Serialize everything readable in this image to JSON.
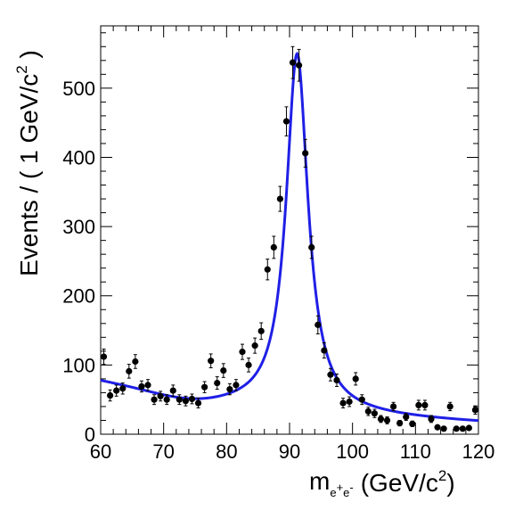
{
  "chart_data": {
    "type": "scatter",
    "title": "",
    "xlabel": {
      "base": "m",
      "subscript": "e",
      "sub_sup1": "+",
      "subscript2": "e",
      "sub_sup2": "-",
      "unit_prefix": "(GeV/c",
      "unit_exp": "2",
      "unit_suffix": ")"
    },
    "ylabel": {
      "prefix": "Events / ( 1 GeV/c",
      "exp": "2",
      "suffix": " )"
    },
    "xlim": [
      60,
      120
    ],
    "ylim": [
      0,
      590
    ],
    "xticks": [
      "60",
      "70",
      "80",
      "90",
      "100",
      "110",
      "120"
    ],
    "yticks": [
      "0",
      "100",
      "200",
      "300",
      "400",
      "500"
    ],
    "grid": false,
    "legend": "none",
    "colors": {
      "data": "#000000",
      "fit": "#1f1fe6",
      "frame": "#000000"
    },
    "series": [
      {
        "kind": "data-points-with-errors",
        "x": [
          60.5,
          61.5,
          62.5,
          63.5,
          64.5,
          65.5,
          66.5,
          67.5,
          68.5,
          69.5,
          70.5,
          71.5,
          72.5,
          73.5,
          74.5,
          75.5,
          76.5,
          77.5,
          78.5,
          79.5,
          80.5,
          81.5,
          82.5,
          83.5,
          84.5,
          85.5,
          86.5,
          87.5,
          88.5,
          89.5,
          90.5,
          91.5,
          92.5,
          93.5,
          94.5,
          95.5,
          96.5,
          97.5,
          98.5,
          99.5,
          100.5,
          101.5,
          102.5,
          103.5,
          104.5,
          105.5,
          106.5,
          107.5,
          108.5,
          109.5,
          110.5,
          111.5,
          112.5,
          113.5,
          114.5,
          115.5,
          116.5,
          117.5,
          118.5,
          119.5
        ],
        "y": [
          112,
          56,
          63,
          66,
          91,
          105,
          69,
          71,
          50,
          55,
          50,
          63,
          50,
          48,
          51,
          45,
          68,
          106,
          74,
          92,
          65,
          71,
          119,
          100,
          128,
          149,
          238,
          270,
          340,
          452,
          537,
          533,
          406,
          270,
          158,
          121,
          86,
          78,
          45,
          47,
          80,
          50,
          33,
          30,
          22,
          20,
          40,
          16,
          25,
          15,
          42,
          42,
          22,
          10,
          8,
          40,
          8,
          8,
          9,
          35
        ],
        "err": [
          11,
          8,
          8,
          8,
          10,
          10,
          8,
          8,
          7,
          7,
          7,
          8,
          7,
          7,
          7,
          7,
          8,
          10,
          9,
          10,
          8,
          8,
          11,
          10,
          11,
          12,
          15,
          16,
          18,
          21,
          23,
          23,
          20,
          16,
          13,
          11,
          9,
          9,
          7,
          7,
          9,
          7,
          6,
          6,
          5,
          5,
          6,
          4,
          5,
          4,
          7,
          7,
          5,
          3,
          3,
          6,
          3,
          3,
          3,
          6
        ]
      },
      {
        "kind": "fit-curve",
        "model": "breit-wigner-plus-exponential",
        "peak_mass": 91.2,
        "peak_height": 515,
        "width": 4.2,
        "bkg_amplitude": 76,
        "bkg_slope": 0.025,
        "bkg_ref_x": 60,
        "bkg_rise_dip_x": 75
      }
    ]
  }
}
